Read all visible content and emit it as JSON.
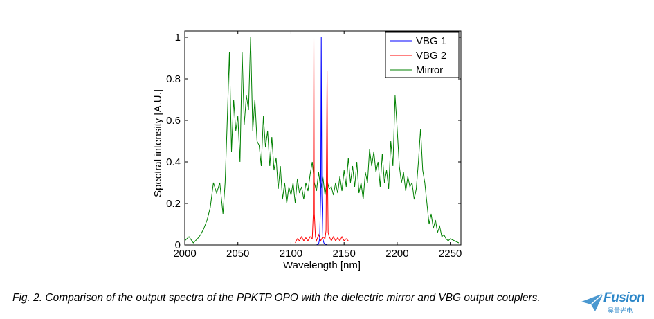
{
  "caption": "Fig. 2. Comparison of the output spectra of the PPKTP OPO with the dielectric mirror and VBG output couplers.",
  "logo": {
    "word": "Fusion",
    "sub": "昊量光电"
  },
  "colors": {
    "vbg1": "#0000ff",
    "vbg2": "#ff0000",
    "mirror": "#008000",
    "logo": "#2b86c8"
  },
  "chart_data": {
    "type": "line",
    "title": "",
    "xlabel": "Wavelength [nm]",
    "ylabel": "Spectral intensity [A.U.]",
    "xlim": [
      2000,
      2260
    ],
    "ylim": [
      0,
      1.03
    ],
    "xticks": [
      2000,
      2050,
      2100,
      2150,
      2200,
      2250
    ],
    "yticks": [
      0,
      0.2,
      0.4,
      0.6,
      0.8,
      1
    ],
    "ytick_labels": [
      "0",
      "0.2",
      "0.4",
      "0.6",
      "0.8",
      "1"
    ],
    "legend_position": "top-right",
    "series": [
      {
        "name": "VBG 1",
        "color": "#0000ff",
        "x": [
          2120,
          2124,
          2126,
          2127,
          2128,
          2128.5,
          2129,
          2130,
          2131,
          2132,
          2134,
          2138
        ],
        "y": [
          0,
          0,
          0.005,
          0.03,
          0.25,
          1.0,
          0.25,
          0.03,
          0.01,
          0.005,
          0,
          0
        ]
      },
      {
        "name": "VBG 2",
        "color": "#ff0000",
        "x": [
          2104,
          2106,
          2108,
          2110,
          2112,
          2114,
          2116,
          2118,
          2120,
          2121,
          2121.5,
          2122,
          2123,
          2124,
          2126,
          2128,
          2130,
          2132,
          2133,
          2134,
          2134.5,
          2135,
          2136,
          2138,
          2140,
          2142,
          2144,
          2146,
          2148,
          2150,
          2152,
          2154
        ],
        "y": [
          0.01,
          0.03,
          0.02,
          0.04,
          0.02,
          0.035,
          0.02,
          0.04,
          0.03,
          0.15,
          1.0,
          0.15,
          0.04,
          0.02,
          0.05,
          0.02,
          0.04,
          0.03,
          0.07,
          0.84,
          0.3,
          0.06,
          0.04,
          0.02,
          0.04,
          0.02,
          0.035,
          0.02,
          0.04,
          0.02,
          0.03,
          0.02
        ]
      },
      {
        "name": "Mirror",
        "color": "#008000",
        "x": [
          2000,
          2004,
          2008,
          2012,
          2015,
          2018,
          2021,
          2024,
          2027,
          2030,
          2033,
          2036,
          2038,
          2040,
          2042,
          2044,
          2046,
          2048,
          2050,
          2052,
          2054,
          2056,
          2058,
          2060,
          2062,
          2064,
          2066,
          2068,
          2070,
          2072,
          2074,
          2076,
          2078,
          2080,
          2082,
          2084,
          2086,
          2088,
          2090,
          2092,
          2094,
          2096,
          2098,
          2100,
          2102,
          2104,
          2106,
          2108,
          2110,
          2112,
          2114,
          2116,
          2118,
          2120,
          2122,
          2124,
          2126,
          2128,
          2130,
          2132,
          2134,
          2136,
          2138,
          2140,
          2142,
          2144,
          2146,
          2148,
          2150,
          2152,
          2154,
          2156,
          2158,
          2160,
          2162,
          2164,
          2166,
          2168,
          2170,
          2172,
          2174,
          2176,
          2178,
          2180,
          2182,
          2184,
          2186,
          2188,
          2190,
          2192,
          2194,
          2196,
          2198,
          2200,
          2202,
          2204,
          2206,
          2208,
          2210,
          2212,
          2214,
          2216,
          2218,
          2220,
          2222,
          2224,
          2226,
          2228,
          2230,
          2232,
          2234,
          2236,
          2238,
          2240,
          2242,
          2244,
          2246,
          2248,
          2250,
          2254,
          2258
        ],
        "y": [
          0.02,
          0.04,
          0.01,
          0.03,
          0.05,
          0.08,
          0.12,
          0.18,
          0.3,
          0.25,
          0.3,
          0.15,
          0.3,
          0.6,
          0.93,
          0.45,
          0.7,
          0.55,
          0.62,
          0.4,
          0.93,
          0.58,
          0.72,
          0.65,
          1.0,
          0.55,
          0.7,
          0.5,
          0.48,
          0.38,
          0.62,
          0.47,
          0.55,
          0.38,
          0.52,
          0.36,
          0.42,
          0.27,
          0.38,
          0.22,
          0.3,
          0.2,
          0.28,
          0.24,
          0.3,
          0.2,
          0.32,
          0.25,
          0.28,
          0.22,
          0.3,
          0.26,
          0.34,
          0.4,
          0.3,
          0.26,
          0.35,
          0.27,
          0.33,
          0.24,
          0.31,
          0.27,
          0.28,
          0.24,
          0.3,
          0.25,
          0.33,
          0.26,
          0.36,
          0.28,
          0.42,
          0.3,
          0.38,
          0.28,
          0.4,
          0.25,
          0.3,
          0.22,
          0.35,
          0.3,
          0.46,
          0.38,
          0.45,
          0.35,
          0.4,
          0.28,
          0.44,
          0.3,
          0.36,
          0.27,
          0.5,
          0.38,
          0.72,
          0.56,
          0.38,
          0.3,
          0.35,
          0.26,
          0.33,
          0.28,
          0.3,
          0.22,
          0.27,
          0.4,
          0.56,
          0.36,
          0.3,
          0.2,
          0.1,
          0.15,
          0.08,
          0.12,
          0.06,
          0.09,
          0.04,
          0.05,
          0.03,
          0.02,
          0.03,
          0.02,
          0.01
        ]
      }
    ]
  }
}
